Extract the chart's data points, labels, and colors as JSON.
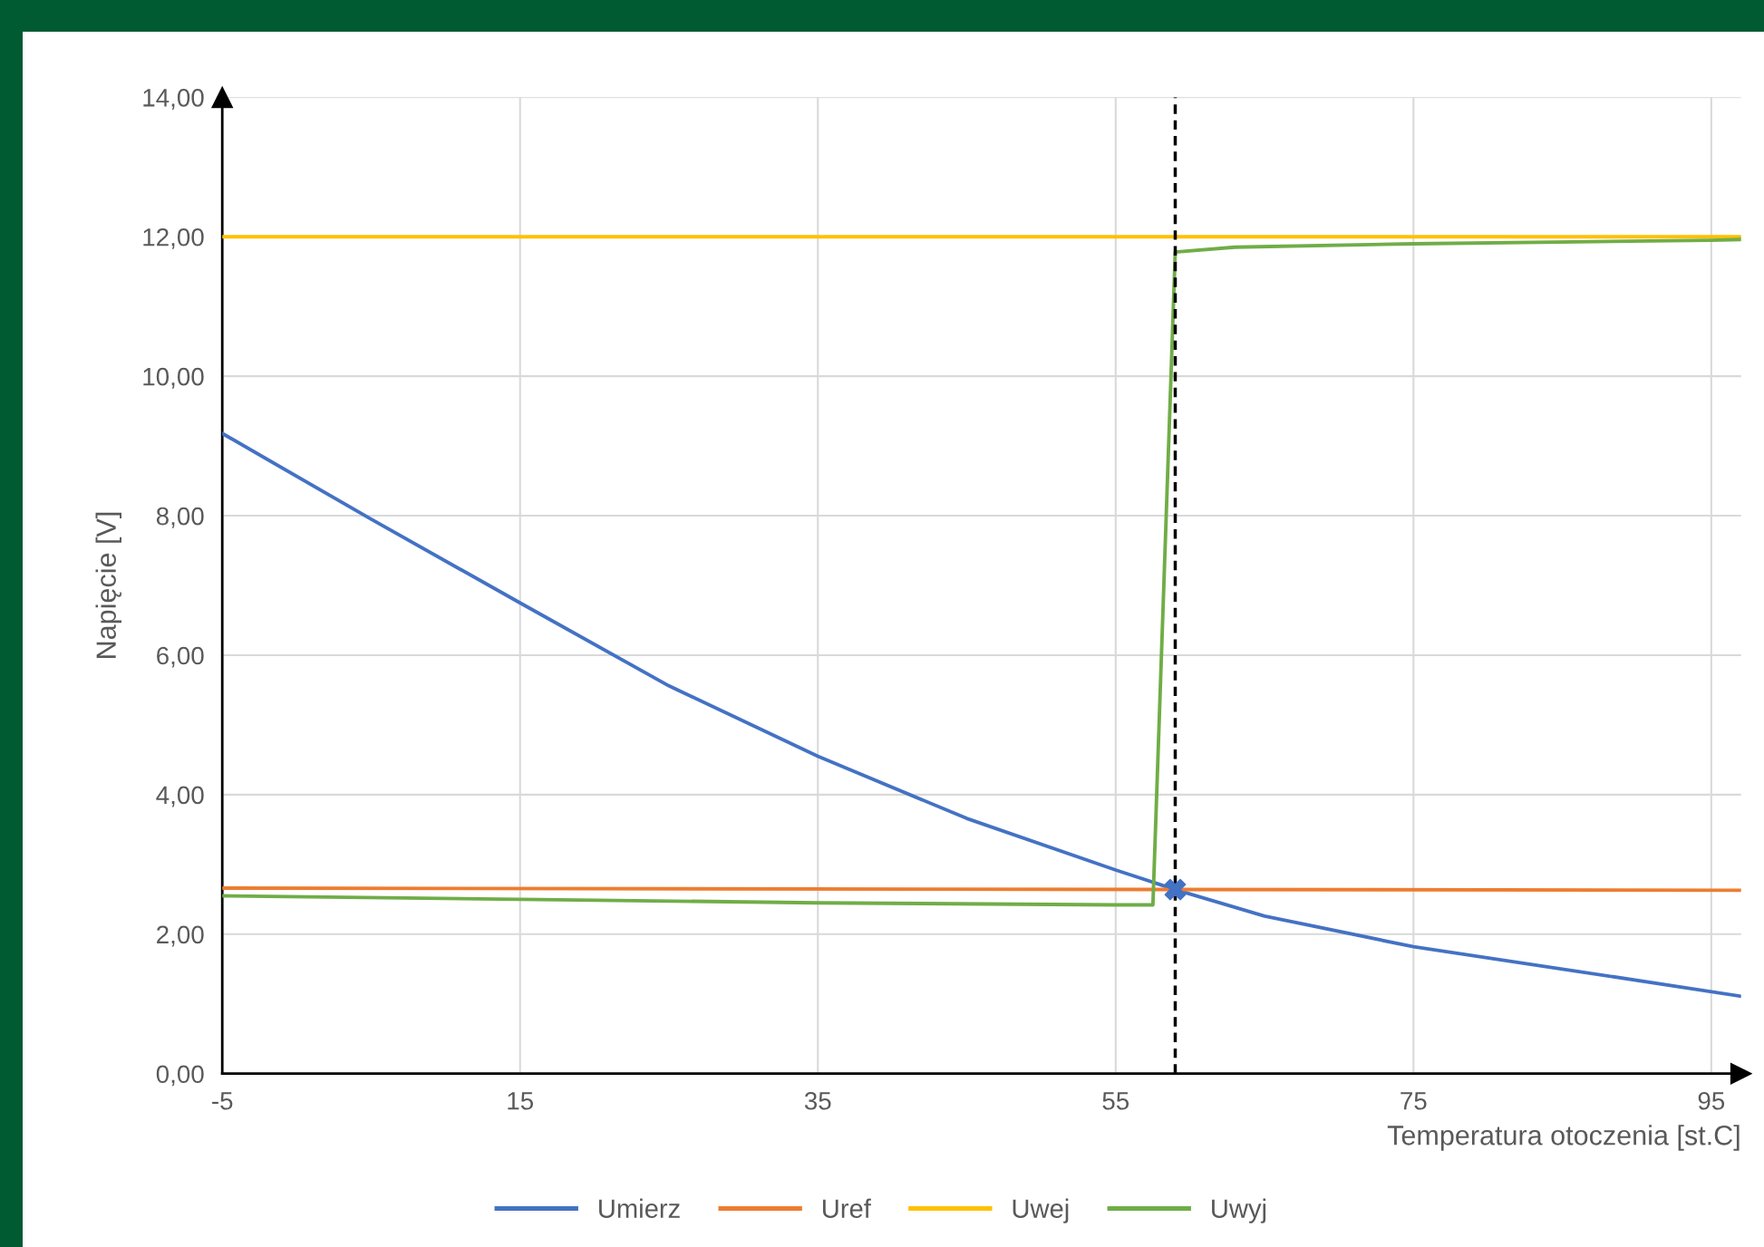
{
  "chart_data": {
    "type": "line",
    "xlabel": "Temperatura otoczenia [st.C]",
    "ylabel": "Napięcie [V]",
    "xlim": [
      -5,
      97
    ],
    "ylim": [
      0,
      14
    ],
    "xticks": [
      -5,
      15,
      35,
      55,
      75,
      95
    ],
    "yticks": [
      {
        "value": 0,
        "label": "0,00"
      },
      {
        "value": 2,
        "label": "2,00"
      },
      {
        "value": 4,
        "label": "4,00"
      },
      {
        "value": 6,
        "label": "6,00"
      },
      {
        "value": 8,
        "label": "8,00"
      },
      {
        "value": 10,
        "label": "10,00"
      },
      {
        "value": 12,
        "label": "12,00"
      },
      {
        "value": 14,
        "label": "14,00"
      }
    ],
    "grid": true,
    "legend": "bottom",
    "line_style": "solid",
    "marker": "none",
    "series": [
      {
        "name": "Umierz",
        "color": "#4472c4",
        "x": [
          -5,
          5,
          15,
          25,
          35,
          45,
          55,
          59,
          65,
          75,
          85,
          97
        ],
        "values": [
          9.18,
          7.95,
          6.75,
          5.56,
          4.55,
          3.66,
          2.92,
          2.64,
          2.26,
          1.82,
          1.5,
          1.11
        ]
      },
      {
        "name": "Uref",
        "color": "#ed7d31",
        "x": [
          -5,
          97
        ],
        "values": [
          2.66,
          2.63
        ]
      },
      {
        "name": "Uwej",
        "color": "#ffc000",
        "x": [
          -5,
          97
        ],
        "values": [
          12.0,
          12.0
        ]
      },
      {
        "name": "Uwyj",
        "color": "#70ad47",
        "x": [
          -5,
          15,
          35,
          55,
          57.5,
          59,
          63,
          75,
          95,
          97
        ],
        "values": [
          2.55,
          2.5,
          2.45,
          2.42,
          2.42,
          11.78,
          11.85,
          11.9,
          11.95,
          11.96
        ]
      },
      {
        "type": "scatter",
        "marker": "cross",
        "color": "#4472c4",
        "x": [
          59
        ],
        "values": [
          2.64
        ]
      }
    ],
    "ref_lines": [
      {
        "axis": "x",
        "value": 59,
        "color": "#000000",
        "line_style": "dashed"
      }
    ]
  }
}
